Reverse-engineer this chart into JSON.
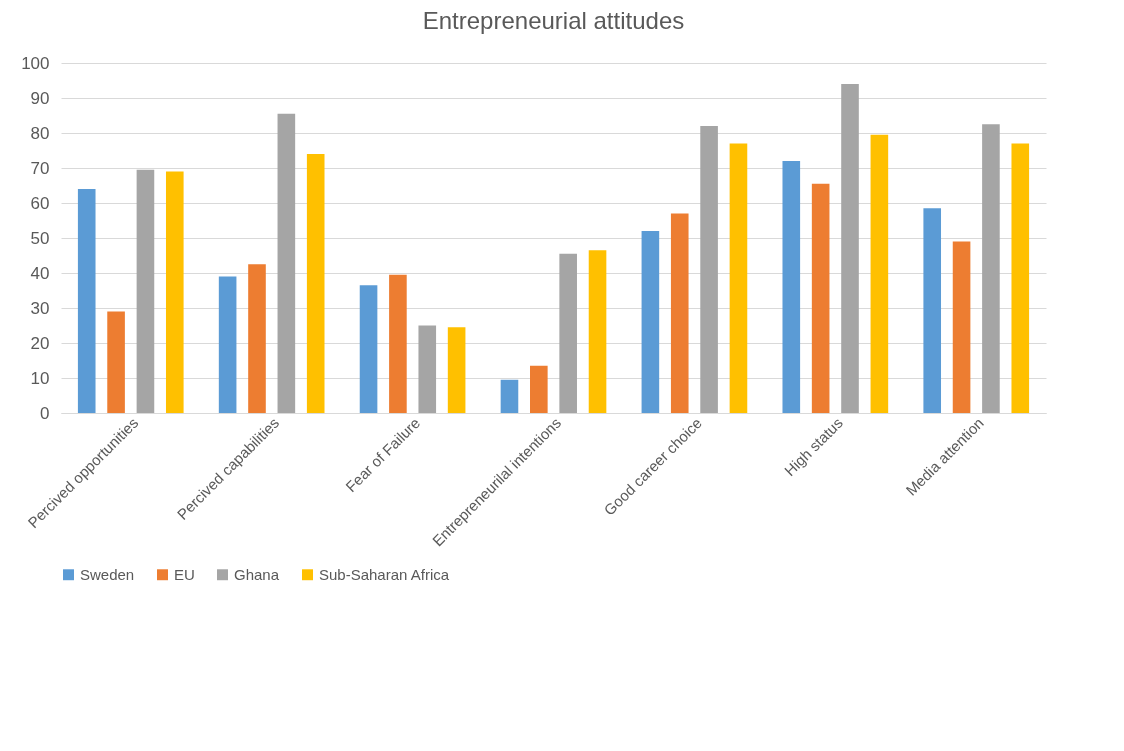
{
  "chart_data": {
    "type": "bar",
    "title": "Entrepreneurial attitudes",
    "categories": [
      "Percived opportunities",
      "Percived capabilities",
      "Fear of Failure",
      "Entrepreneurilal intentions",
      "Good career choice",
      "High status",
      "Media attention"
    ],
    "series": [
      {
        "name": "Sweden",
        "color": "#5b9bd5",
        "values": [
          64,
          39,
          36.5,
          9.5,
          52,
          72,
          58.5
        ]
      },
      {
        "name": "EU",
        "color": "#ed7d31",
        "values": [
          29,
          42.5,
          39.5,
          13.5,
          57,
          65.5,
          49
        ]
      },
      {
        "name": "Ghana",
        "color": "#a5a5a5",
        "values": [
          69.5,
          85.5,
          25,
          45.5,
          82,
          94,
          82.5
        ]
      },
      {
        "name": "Sub-Saharan Africa",
        "color": "#ffc000",
        "values": [
          69,
          74,
          24.5,
          46.5,
          77,
          79.5,
          77
        ]
      }
    ],
    "ylim": [
      0,
      100
    ],
    "yticks": [
      0,
      10,
      20,
      30,
      40,
      50,
      60,
      70,
      80,
      90,
      100
    ],
    "grid": "y",
    "legend": "bottom"
  }
}
